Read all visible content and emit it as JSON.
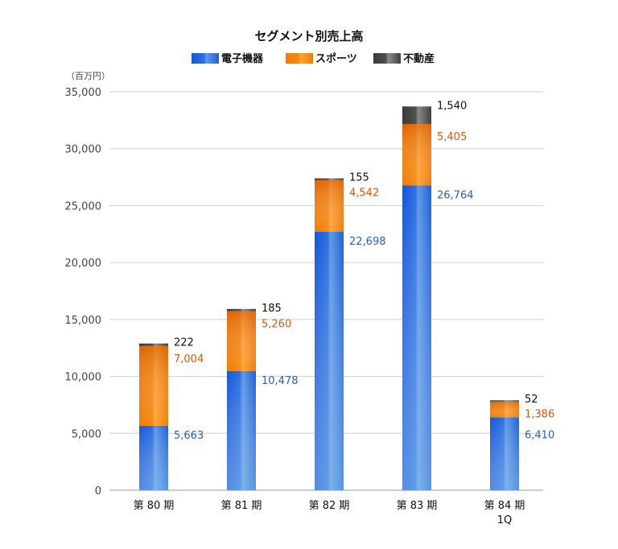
{
  "chart_data": {
    "type": "bar",
    "stacked": true,
    "title": "セグメント別売上高",
    "unit_label": "（百万円）",
    "categories": [
      [
        "第 80 期"
      ],
      [
        "第 81 期"
      ],
      [
        "第 82 期"
      ],
      [
        "第 83 期"
      ],
      [
        "第 84 期",
        "1Q"
      ]
    ],
    "series": [
      {
        "name": "電子機器",
        "values": [
          5663,
          10478,
          22698,
          26764,
          6410
        ],
        "labels": [
          "5,663",
          "10,478",
          "22,698",
          "26,764",
          "6,410"
        ],
        "color": "#1f5fd6",
        "label_color": "#2a5fc9"
      },
      {
        "name": "スポーツ",
        "values": [
          7004,
          5260,
          4542,
          5405,
          1386
        ],
        "labels": [
          "7,004",
          "5,260",
          "4,542",
          "5,405",
          "1,386"
        ],
        "color": "#f07f09",
        "label_color": "#e0560f"
      },
      {
        "name": "不動産",
        "values": [
          222,
          185,
          155,
          1540,
          52
        ],
        "labels": [
          "222",
          "185",
          "155",
          "1,540",
          "52"
        ],
        "color": "#4a4a4a",
        "label_color": "#111111"
      }
    ],
    "ylim": [
      0,
      35000
    ],
    "yticks": [
      0,
      5000,
      10000,
      15000,
      20000,
      25000,
      30000,
      35000
    ],
    "ytick_labels": [
      "0",
      "5,000",
      "10,000",
      "15,000",
      "20,000",
      "25,000",
      "30,000",
      "35,000"
    ],
    "grid": true,
    "legend_position": "top"
  }
}
